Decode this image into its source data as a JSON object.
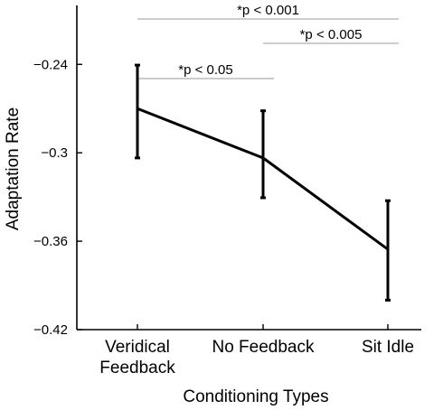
{
  "chart_data": {
    "type": "line",
    "xlabel": "Conditioning Types",
    "ylabel": "Adaptation Rate",
    "categories": [
      "Veridical Feedback",
      "No Feedback",
      "Sit Idle"
    ],
    "category_lines": [
      [
        "Veridical",
        "Feedback"
      ],
      [
        "No Feedback"
      ],
      [
        "Sit Idle"
      ]
    ],
    "series": [
      {
        "values": [
          -0.27,
          -0.3035,
          -0.3655
        ],
        "err_low": [
          -0.3035,
          -0.3305,
          -0.4
        ],
        "err_high": [
          -0.2405,
          -0.2715,
          -0.3325
        ]
      }
    ],
    "ylim": [
      -0.42,
      -0.2
    ],
    "yticks": [
      -0.42,
      -0.36,
      -0.3,
      -0.24
    ],
    "ytick_labels": [
      "−0.42",
      "−0.36",
      "−0.3",
      "−0.24"
    ],
    "significance": [
      {
        "label": "*p < 0.001",
        "from": 0,
        "to": 2,
        "level": 3
      },
      {
        "label": "*p < 0.005",
        "from": 1,
        "to": 2,
        "level": 2
      },
      {
        "label": "*p < 0.05",
        "from": 0,
        "to": 1,
        "level": 1
      }
    ],
    "grid": false,
    "line_color": "#000000",
    "sig_line_color": "#999999"
  }
}
